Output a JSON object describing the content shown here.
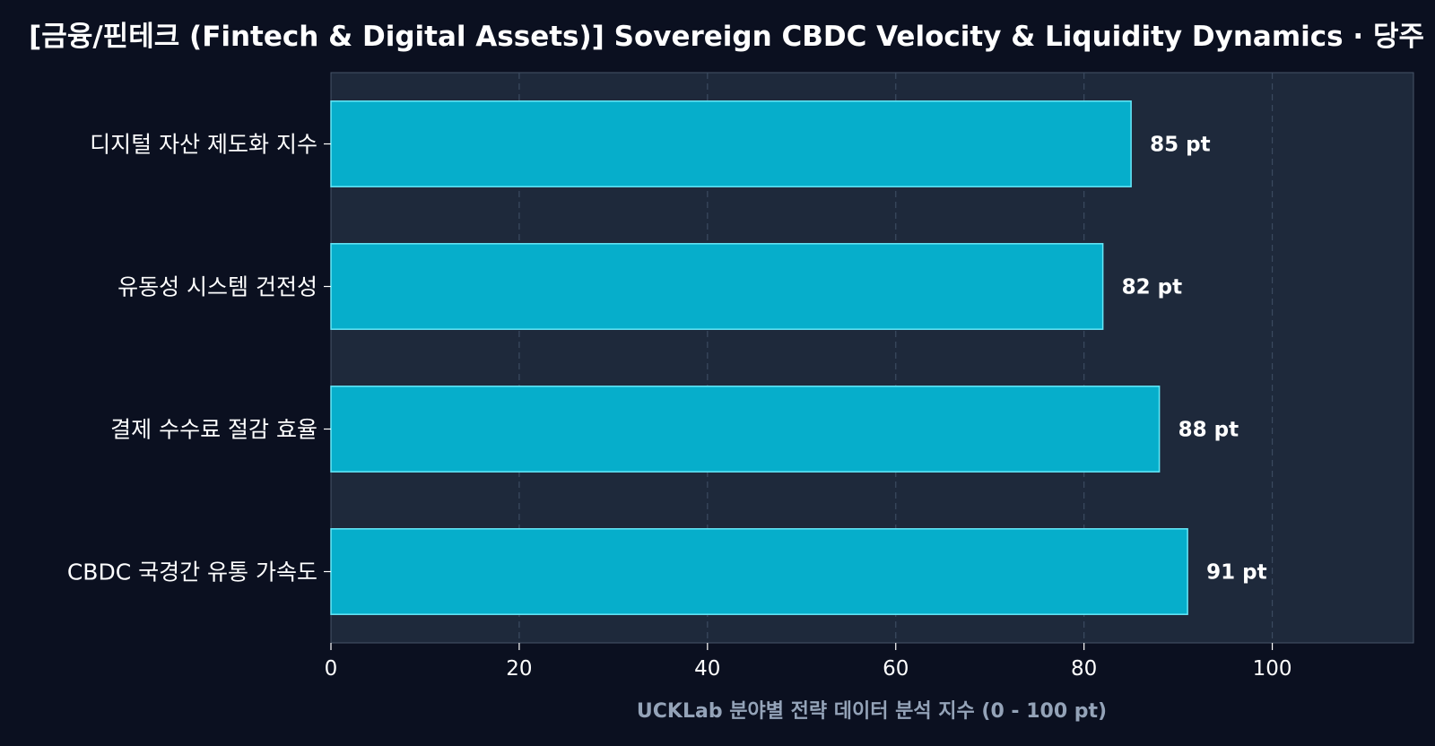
{
  "chart_data": {
    "type": "bar",
    "orientation": "horizontal",
    "title": "[금융/핀테크 (Fintech & Digital Assets)] Sovereign CBDC Velocity & Liquidity Dynamics · 당주",
    "xlabel": "UCKLab 분야별 전략 데이터 분석 지수 (0 - 100 pt)",
    "ylabel": "",
    "categories": [
      "디지털 자산 제도화 지수",
      "유동성 시스템 건전성",
      "결제 수수료 절감 효율",
      "CBDC 국경간 유통 가속도"
    ],
    "values": [
      85,
      82,
      88,
      91
    ],
    "value_suffix": " pt",
    "xlim": [
      0,
      115
    ],
    "xticks": [
      0,
      20,
      40,
      60,
      80,
      100
    ],
    "grid": "vertical-dashed",
    "legend": "none",
    "colors": {
      "background": "#0b1020",
      "plot_background": "#1e293b",
      "bar_fill": "#06aecb",
      "bar_edge": "#67e8f9",
      "grid": "#3b4a60",
      "axis_title": "#94a3b8"
    }
  }
}
